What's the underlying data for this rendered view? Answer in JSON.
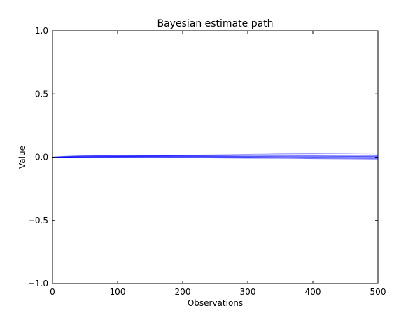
{
  "chart_data": {
    "type": "line",
    "title": "Bayesian estimate path",
    "xlabel": "Observations",
    "ylabel": "Value",
    "xlim": [
      0,
      500
    ],
    "ylim": [
      -1.0,
      1.0
    ],
    "xticks": [
      0,
      100,
      200,
      300,
      400,
      500
    ],
    "xtick_labels": [
      "0",
      "100",
      "200",
      "300",
      "400",
      "500"
    ],
    "yticks": [
      -1.0,
      -0.5,
      0.0,
      0.5,
      1.0
    ],
    "ytick_labels": [
      "−1.0",
      "−0.5",
      "0.0",
      "0.5",
      "1.0"
    ],
    "grid": false,
    "legend": false,
    "line_color": "#0000ff",
    "line_alpha": 0.4,
    "x": [
      0,
      25,
      50,
      75,
      100,
      150,
      200,
      250,
      300,
      350,
      400,
      450,
      500
    ],
    "series": [
      {
        "values": [
          0.0,
          0.008,
          0.013,
          0.011,
          0.01,
          0.012,
          0.016,
          0.018,
          0.022,
          0.026,
          0.028,
          0.03,
          0.033
        ]
      },
      {
        "values": [
          0.0,
          0.004,
          0.008,
          0.009,
          0.008,
          0.01,
          0.013,
          0.014,
          0.016,
          0.018,
          0.017,
          0.016,
          0.018
        ]
      },
      {
        "values": [
          0.0,
          0.002,
          0.004,
          0.006,
          0.006,
          0.008,
          0.01,
          0.01,
          0.009,
          0.012,
          0.011,
          0.01,
          0.011
        ]
      },
      {
        "values": [
          0.0,
          0.001,
          0.002,
          0.004,
          0.005,
          0.007,
          0.008,
          0.006,
          0.005,
          0.007,
          0.008,
          0.006,
          0.005
        ]
      },
      {
        "values": [
          0.0,
          0.0,
          0.001,
          0.002,
          0.003,
          0.005,
          0.004,
          0.003,
          0.001,
          0.002,
          0.003,
          0.002,
          0.0
        ]
      },
      {
        "values": [
          0.0,
          -0.001,
          0.0,
          0.001,
          0.002,
          0.003,
          0.002,
          0.0,
          -0.002,
          -0.002,
          -0.001,
          -0.003,
          -0.004
        ]
      },
      {
        "values": [
          0.0,
          -0.002,
          -0.002,
          -0.001,
          0.0,
          0.001,
          0.0,
          -0.002,
          -0.005,
          -0.006,
          -0.005,
          -0.006,
          -0.008
        ]
      },
      {
        "values": [
          0.0,
          -0.003,
          -0.004,
          -0.003,
          -0.002,
          -0.001,
          -0.003,
          -0.006,
          -0.009,
          -0.01,
          -0.009,
          -0.01,
          -0.012
        ]
      },
      {
        "values": [
          0.0,
          0.003,
          0.006,
          0.007,
          0.006,
          0.009,
          0.007,
          0.004,
          0.0,
          -0.005,
          -0.012,
          -0.014,
          -0.016
        ]
      },
      {
        "values": [
          0.0,
          0.005,
          0.01,
          0.012,
          0.011,
          0.014,
          0.012,
          0.01,
          0.007,
          0.004,
          0.002,
          0.004,
          0.006
        ]
      }
    ]
  }
}
